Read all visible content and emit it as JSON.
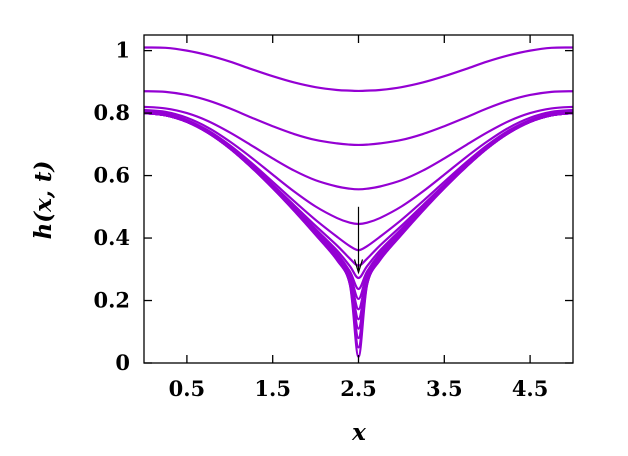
{
  "chart_data": {
    "type": "line",
    "title": "",
    "xlabel": "x",
    "ylabel": "h(x, t)",
    "xlim": [
      0,
      5
    ],
    "ylim": [
      0,
      1.05
    ],
    "xticks": [
      0.5,
      1.5,
      2.5,
      3.5,
      4.5
    ],
    "xtick_labels": [
      "0.5",
      "1.5",
      "2.5",
      "3.5",
      "4.5"
    ],
    "yticks": [
      0,
      0.2,
      0.4,
      0.6,
      0.8,
      1
    ],
    "ytick_labels": [
      "0",
      "0.2",
      "0.4",
      "0.6",
      "0.8",
      "1"
    ],
    "grid": false,
    "line_color": "#9400D3",
    "x": [
      0,
      0.25,
      0.5,
      0.75,
      1,
      1.25,
      1.5,
      1.75,
      2,
      2.25,
      2.4,
      2.5,
      2.6,
      2.75,
      3,
      3.25,
      3.5,
      3.75,
      4,
      4.25,
      4.5,
      4.75,
      5
    ],
    "series": [
      {
        "values": [
          1.01,
          1.009,
          1.0,
          0.985,
          0.965,
          0.941,
          0.918,
          0.898,
          0.883,
          0.874,
          0.872,
          0.871,
          0.872,
          0.874,
          0.883,
          0.898,
          0.918,
          0.941,
          0.965,
          0.985,
          1.0,
          1.009,
          1.01
        ]
      },
      {
        "values": [
          0.87,
          0.868,
          0.858,
          0.84,
          0.815,
          0.786,
          0.758,
          0.733,
          0.714,
          0.703,
          0.699,
          0.698,
          0.699,
          0.703,
          0.714,
          0.733,
          0.758,
          0.786,
          0.815,
          0.84,
          0.858,
          0.868,
          0.87
        ]
      },
      {
        "values": [
          0.82,
          0.815,
          0.8,
          0.774,
          0.738,
          0.697,
          0.655,
          0.616,
          0.585,
          0.565,
          0.558,
          0.556,
          0.558,
          0.565,
          0.585,
          0.616,
          0.655,
          0.697,
          0.738,
          0.774,
          0.8,
          0.815,
          0.82
        ]
      },
      {
        "values": [
          0.81,
          0.804,
          0.785,
          0.753,
          0.709,
          0.658,
          0.603,
          0.549,
          0.501,
          0.464,
          0.449,
          0.445,
          0.449,
          0.464,
          0.501,
          0.549,
          0.603,
          0.658,
          0.709,
          0.753,
          0.785,
          0.804,
          0.81
        ]
      },
      {
        "values": [
          0.805,
          0.798,
          0.778,
          0.744,
          0.697,
          0.641,
          0.58,
          0.518,
          0.458,
          0.404,
          0.374,
          0.361,
          0.374,
          0.404,
          0.458,
          0.518,
          0.58,
          0.641,
          0.697,
          0.744,
          0.778,
          0.798,
          0.805
        ]
      },
      {
        "values": [
          0.803,
          0.796,
          0.775,
          0.74,
          0.692,
          0.634,
          0.571,
          0.505,
          0.439,
          0.376,
          0.334,
          0.312,
          0.334,
          0.376,
          0.439,
          0.505,
          0.571,
          0.634,
          0.692,
          0.74,
          0.775,
          0.796,
          0.803
        ]
      },
      {
        "values": [
          0.802,
          0.795,
          0.774,
          0.739,
          0.69,
          0.632,
          0.567,
          0.499,
          0.429,
          0.36,
          0.31,
          0.272,
          0.31,
          0.36,
          0.429,
          0.499,
          0.567,
          0.632,
          0.69,
          0.739,
          0.774,
          0.795,
          0.802
        ]
      },
      {
        "values": [
          0.801,
          0.794,
          0.773,
          0.738,
          0.689,
          0.63,
          0.565,
          0.496,
          0.424,
          0.351,
          0.293,
          0.237,
          0.293,
          0.351,
          0.424,
          0.496,
          0.565,
          0.63,
          0.689,
          0.738,
          0.773,
          0.794,
          0.801
        ]
      },
      {
        "values": [
          0.8,
          0.793,
          0.772,
          0.737,
          0.688,
          0.629,
          0.563,
          0.493,
          0.42,
          0.344,
          0.282,
          0.205,
          0.282,
          0.344,
          0.42,
          0.493,
          0.563,
          0.629,
          0.688,
          0.737,
          0.772,
          0.793,
          0.8
        ]
      },
      {
        "values": [
          0.8,
          0.793,
          0.772,
          0.737,
          0.688,
          0.628,
          0.562,
          0.491,
          0.417,
          0.339,
          0.272,
          0.172,
          0.272,
          0.339,
          0.417,
          0.491,
          0.562,
          0.628,
          0.688,
          0.737,
          0.772,
          0.793,
          0.8
        ]
      },
      {
        "values": [
          0.8,
          0.793,
          0.772,
          0.737,
          0.687,
          0.627,
          0.561,
          0.49,
          0.415,
          0.335,
          0.265,
          0.14,
          0.265,
          0.335,
          0.415,
          0.49,
          0.561,
          0.627,
          0.687,
          0.737,
          0.772,
          0.793,
          0.8
        ]
      },
      {
        "values": [
          0.8,
          0.793,
          0.772,
          0.736,
          0.687,
          0.627,
          0.561,
          0.489,
          0.413,
          0.333,
          0.26,
          0.11,
          0.26,
          0.333,
          0.413,
          0.489,
          0.561,
          0.627,
          0.687,
          0.736,
          0.772,
          0.793,
          0.8
        ]
      },
      {
        "values": [
          0.8,
          0.793,
          0.772,
          0.736,
          0.687,
          0.627,
          0.56,
          0.488,
          0.412,
          0.331,
          0.255,
          0.08,
          0.255,
          0.331,
          0.412,
          0.488,
          0.56,
          0.627,
          0.687,
          0.736,
          0.772,
          0.793,
          0.8
        ]
      },
      {
        "values": [
          0.8,
          0.793,
          0.772,
          0.736,
          0.687,
          0.627,
          0.56,
          0.488,
          0.411,
          0.33,
          0.252,
          0.05,
          0.252,
          0.33,
          0.411,
          0.488,
          0.56,
          0.627,
          0.687,
          0.736,
          0.772,
          0.793,
          0.8
        ]
      },
      {
        "values": [
          0.8,
          0.793,
          0.772,
          0.736,
          0.687,
          0.627,
          0.56,
          0.487,
          0.41,
          0.329,
          0.25,
          0.02,
          0.25,
          0.329,
          0.41,
          0.487,
          0.56,
          0.627,
          0.687,
          0.736,
          0.772,
          0.793,
          0.8
        ]
      }
    ],
    "annotation": {
      "type": "arrow",
      "x": 2.5,
      "y_from": 0.5,
      "y_to": 0.29
    }
  }
}
